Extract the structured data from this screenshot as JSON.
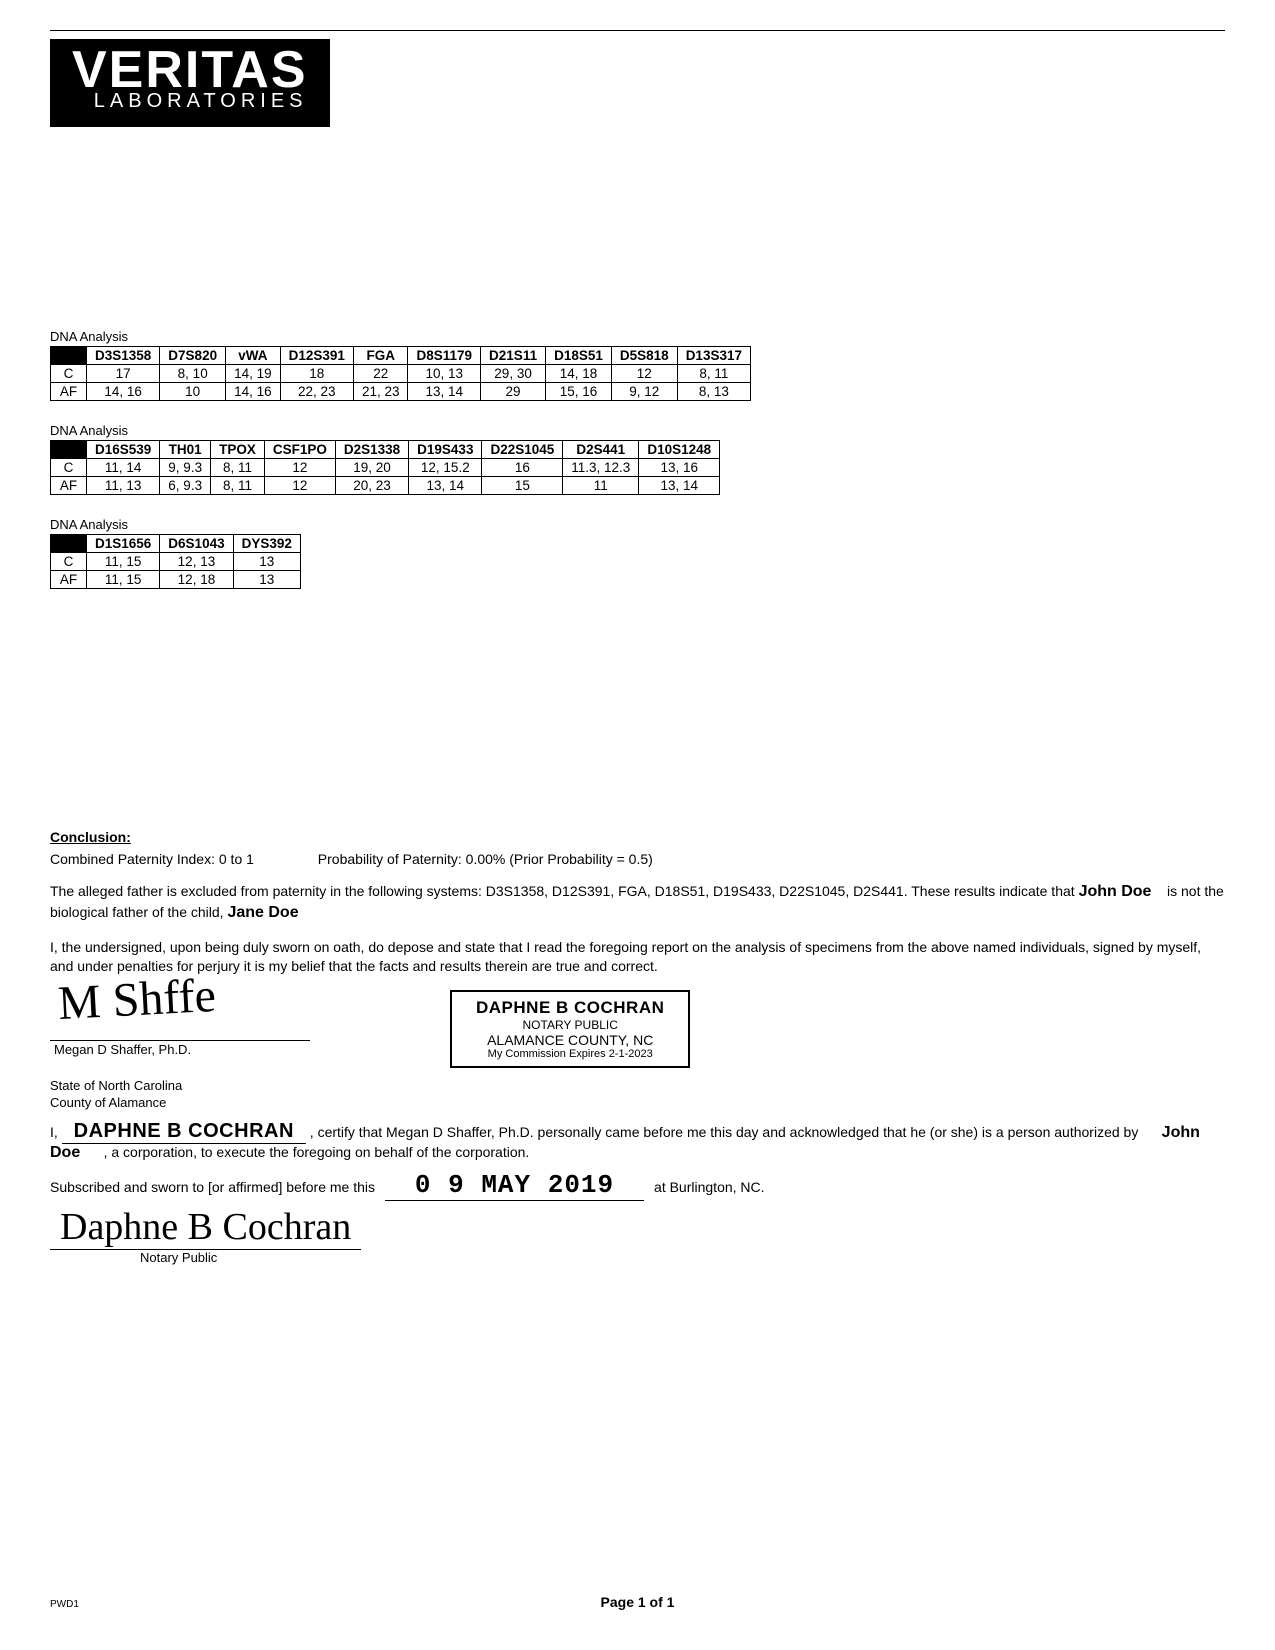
{
  "logo": {
    "main": "VERITAS",
    "sub": "LABORATORIES"
  },
  "dna_label": "DNA Analysis",
  "tables": [
    {
      "headers": [
        "",
        "D3S1358",
        "D7S820",
        "vWA",
        "D12S391",
        "FGA",
        "D8S1179",
        "D21S11",
        "D18S51",
        "D5S818",
        "D13S317"
      ],
      "rows": [
        [
          "C",
          "17",
          "8, 10",
          "14, 19",
          "18",
          "22",
          "10, 13",
          "29, 30",
          "14, 18",
          "12",
          "8, 11"
        ],
        [
          "AF",
          "14, 16",
          "10",
          "14, 16",
          "22, 23",
          "21, 23",
          "13, 14",
          "29",
          "15, 16",
          "9, 12",
          "8, 13"
        ]
      ]
    },
    {
      "headers": [
        "",
        "D16S539",
        "TH01",
        "TPOX",
        "CSF1PO",
        "D2S1338",
        "D19S433",
        "D22S1045",
        "D2S441",
        "D10S1248"
      ],
      "rows": [
        [
          "C",
          "11, 14",
          "9, 9.3",
          "8, 11",
          "12",
          "19, 20",
          "12, 15.2",
          "16",
          "11.3, 12.3",
          "13, 16"
        ],
        [
          "AF",
          "11, 13",
          "6, 9.3",
          "8, 11",
          "12",
          "20, 23",
          "13, 14",
          "15",
          "11",
          "13, 14"
        ]
      ]
    },
    {
      "headers": [
        "",
        "D1S1656",
        "D6S1043",
        "DYS392"
      ],
      "rows": [
        [
          "C",
          "11, 15",
          "12, 13",
          "13"
        ],
        [
          "AF",
          "11, 15",
          "12, 18",
          "13"
        ]
      ]
    }
  ],
  "conclusion": {
    "heading": "Conclusion:",
    "cpi_label": "Combined Paternity Index:",
    "cpi_value": "0 to 1",
    "pp_label": "Probability of Paternity:",
    "pp_value": "0.00% (Prior Probability = 0.5)",
    "para1_a": "The alleged father is excluded from paternity in the following systems: D3S1358, D12S391, FGA, D18S51, D19S433, D22S1045, D2S441.  These results indicate that",
    "af_name": "John Doe",
    "para1_b": "is not the biological father of the child,",
    "child_name": "Jane Doe",
    "para2": "I, the undersigned, upon being duly sworn on oath, do depose and state that I read the foregoing report on the analysis of specimens from the above named individuals, signed by myself, and under penalties for perjury it is my belief that the facts and results therein are true and correct."
  },
  "signature": {
    "scrawl": "M Shffe",
    "name": "Megan D Shaffer, Ph.D."
  },
  "stamp": {
    "name": "DAPHNE B COCHRAN",
    "title": "NOTARY PUBLIC",
    "jurisdiction": "ALAMANCE COUNTY, NC",
    "expires": "My Commission Expires 2-1-2023"
  },
  "state_lines": {
    "state": "State of North Carolina",
    "county": "County of Alamance"
  },
  "notary": {
    "i": "I,",
    "printed": "DAPHNE B COCHRAN",
    "cert_a": ", certify that Megan D Shaffer, Ph.D. personally came before me this day and acknowledged that he (or she) is a person authorized by",
    "corp": "John Doe",
    "cert_b": ", a corporation, to execute the foregoing on behalf of the corporation.",
    "sub_a": "Subscribed and sworn to [or affirmed] before me this",
    "date": "0 9 MAY  2019",
    "sub_b": "at Burlington, NC.",
    "sig": "Daphne B Cochran",
    "label": "Notary Public"
  },
  "footer": {
    "code": "PWD1",
    "page": "Page 1 of 1"
  }
}
